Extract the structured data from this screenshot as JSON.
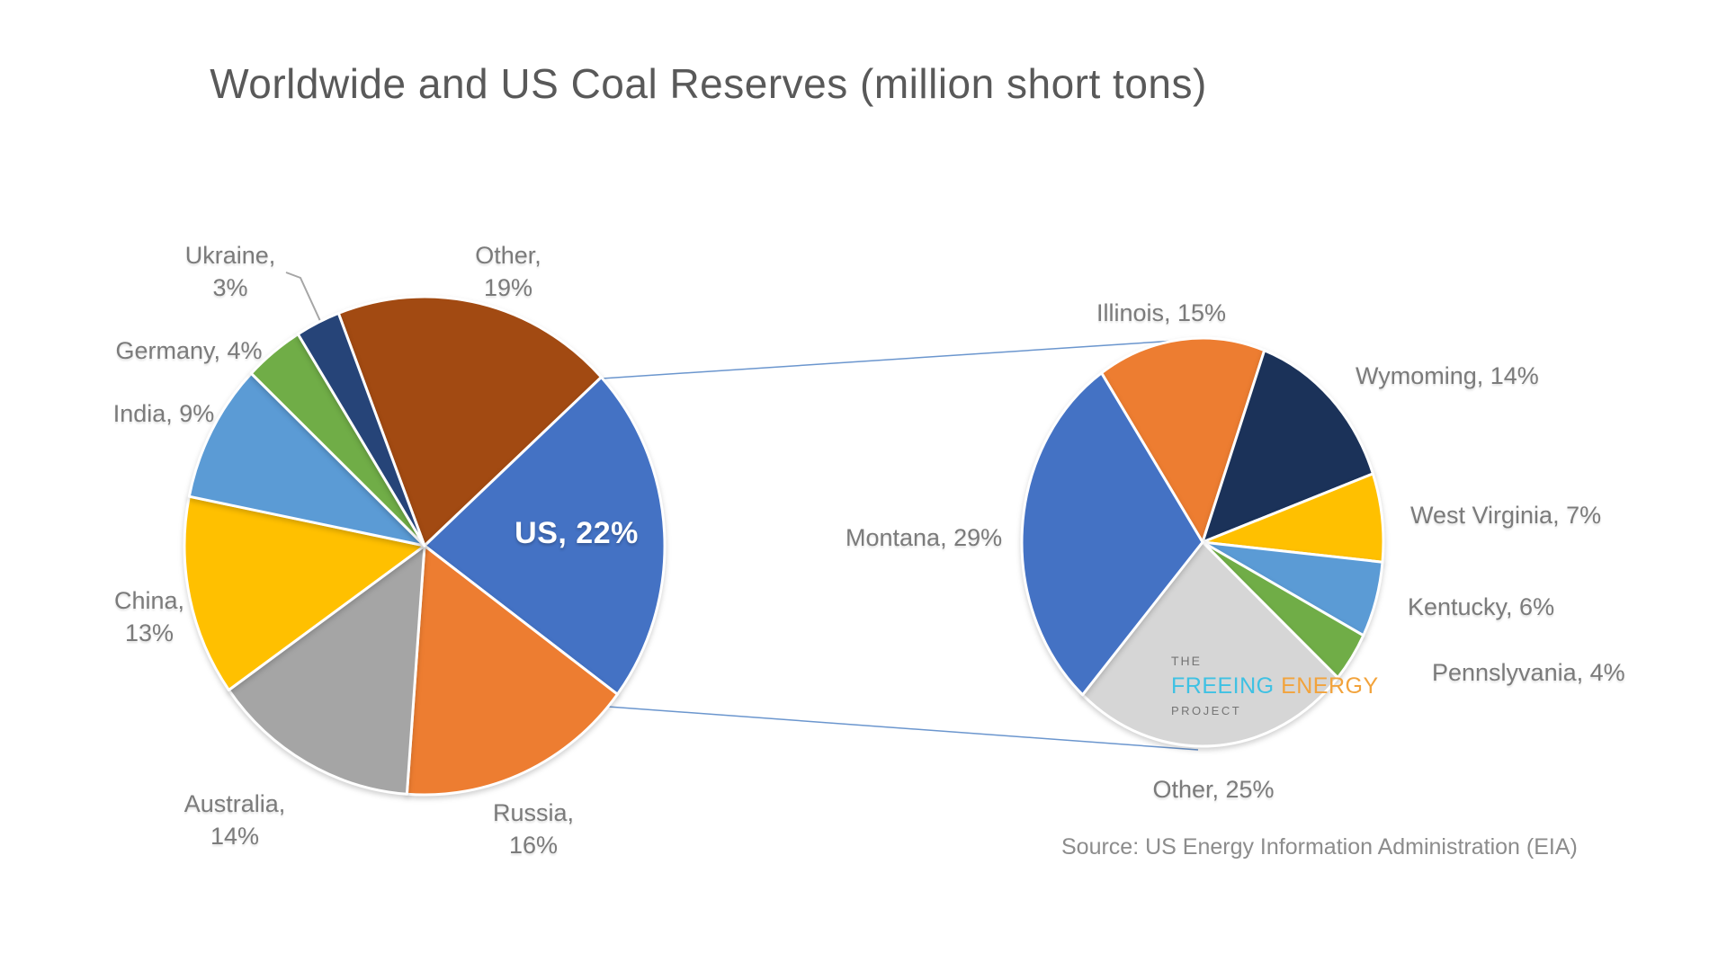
{
  "title": "Worldwide and US Coal Reserves (million short tons)",
  "source": "Source: US Energy Information Administration (EIA)",
  "logo": {
    "the": "THE",
    "freeing": "FREEING ",
    "energy": "ENERGY",
    "project": "PROJECT",
    "freeing_color": "#3FC1E3",
    "energy_color": "#F2A33C"
  },
  "chart_data": [
    {
      "type": "pie",
      "name": "world-coal-reserves",
      "categories": [
        "Other",
        "US",
        "Russia",
        "Australia",
        "China",
        "India",
        "Germany",
        "Ukraine"
      ],
      "values": [
        19,
        22,
        16,
        14,
        13,
        9,
        4,
        3
      ],
      "unit": "%",
      "colors": [
        "#A24A12",
        "#4472C4",
        "#ED7D31",
        "#A5A5A5",
        "#FFC000",
        "#5B9BD5",
        "#70AD47",
        "#264478"
      ],
      "start_angle_deg": -21,
      "legend": "none",
      "label_style": "outside category+percent, US labeled inside"
    },
    {
      "type": "pie",
      "name": "us-coal-reserves-by-state",
      "categories": [
        "Illinois",
        "Wymoming",
        "West Virginia",
        "Kentucky",
        "Pennslyvania",
        "Other",
        "Montana"
      ],
      "values": [
        15,
        14,
        7,
        6,
        4,
        25,
        29
      ],
      "unit": "%",
      "colors": [
        "#ED7D31",
        "#1B3259",
        "#FFC000",
        "#5B9BD5",
        "#70AD47",
        "#D6D6D6",
        "#4472C4"
      ],
      "start_angle_deg": -34,
      "legend": "none",
      "label_style": "outside category+percent"
    }
  ],
  "labels": {
    "world": {
      "ukraine": [
        "Ukraine,",
        "3%"
      ],
      "other": [
        "Other,",
        "19%"
      ],
      "germany": "Germany, 4%",
      "india": "India, 9%",
      "china": [
        "China,",
        "13%"
      ],
      "australia": [
        "Australia,",
        "14%"
      ],
      "russia": [
        "Russia,",
        "16%"
      ],
      "us": "US, 22%"
    },
    "us_states": {
      "illinois": "Illinois, 15%",
      "wymoming": "Wymoming, 14%",
      "west_virginia": "West Virginia, 7%",
      "kentucky": "Kentucky, 6%",
      "pennslyvania": "Pennslyvania, 4%",
      "other": "Other, 25%",
      "montana": "Montana, 29%"
    }
  }
}
